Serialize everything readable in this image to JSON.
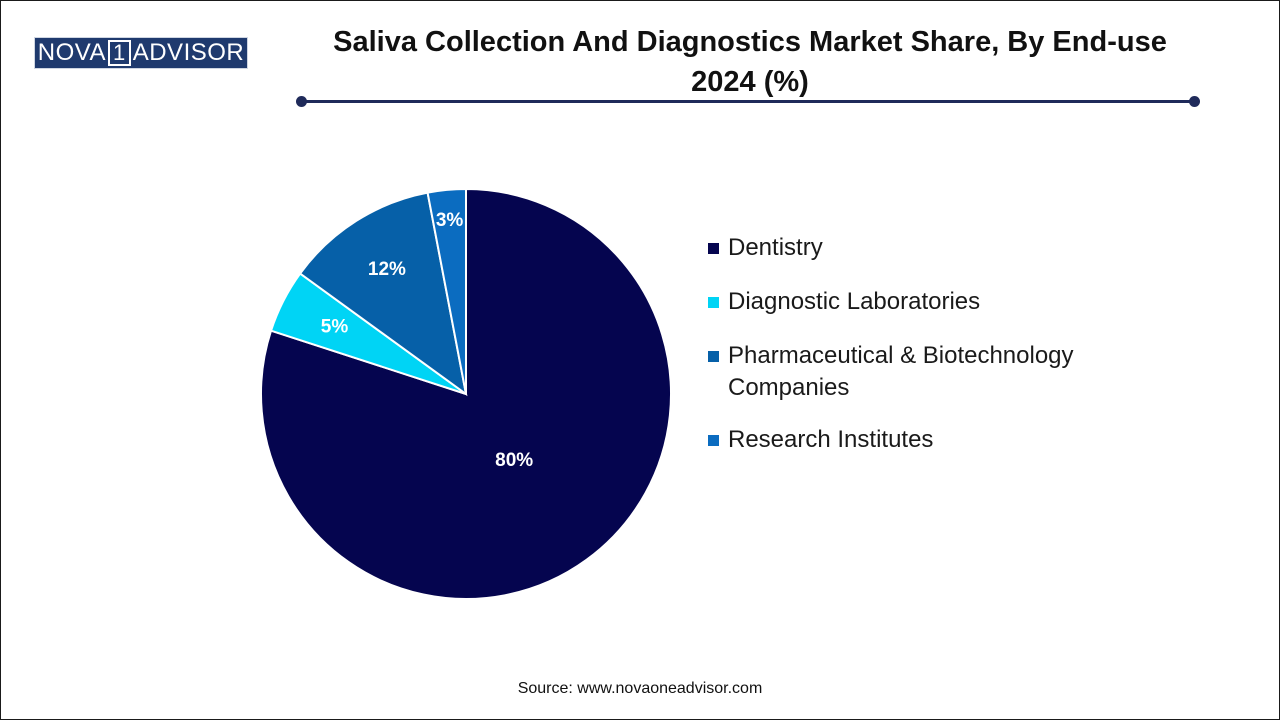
{
  "logo": {
    "text_left": "NOVA",
    "text_box": "1",
    "text_right": "ADVISOR"
  },
  "title_line1": "Saliva Collection And Diagnostics Market Share, By End-use",
  "title_line2": "2024 (%)",
  "source": "Source: www.novaoneadvisor.com",
  "chart_data": {
    "type": "pie",
    "title": "Saliva Collection And Diagnostics Market Share, By End-use 2024 (%)",
    "categories": [
      "Dentistry",
      "Diagnostic Laboratories",
      "Pharmaceutical & Biotechnology Companies",
      "Research Institutes"
    ],
    "values": [
      80,
      5,
      12,
      3
    ],
    "labels": [
      "80%",
      "5%",
      "12%",
      "3%"
    ],
    "colors": [
      "#05054f",
      "#00d4f5",
      "#0660a8",
      "#0b6cc0"
    ],
    "legend_placement": "right",
    "legend_lines": [
      [
        "Dentistry"
      ],
      [
        "Diagnostic Laboratories"
      ],
      [
        "Pharmaceutical & Biotechnology",
        "Companies"
      ],
      [
        "Research Institutes"
      ]
    ]
  }
}
